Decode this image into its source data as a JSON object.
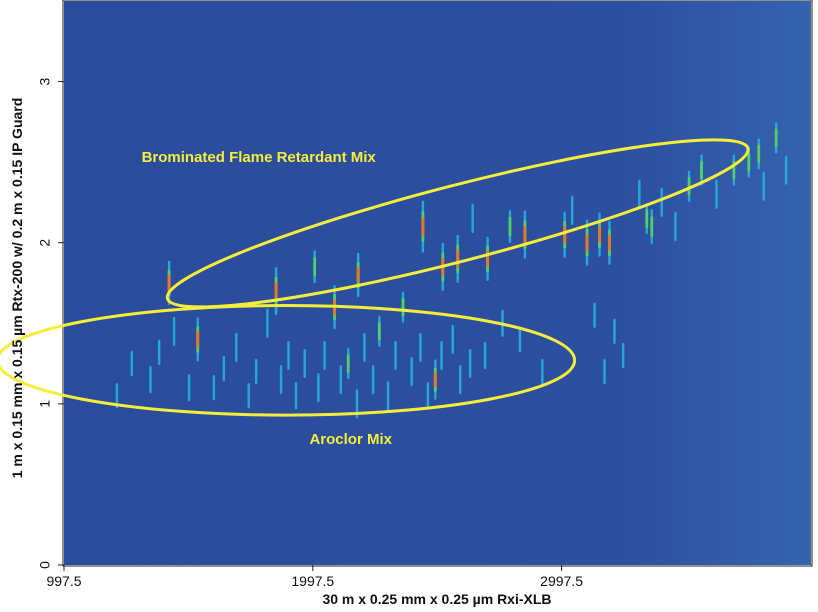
{
  "chart_data": {
    "type": "heatmap",
    "title": "",
    "xlabel": "30 m x 0.25 mm x 0.25 µm Rxi-XLB",
    "ylabel": "1 m x 0.15 mm x 0.15 µm Rtx-200 w/ 0.2 m x 0.15 IP Guard",
    "xlim": [
      997.5,
      4000
    ],
    "ylim": [
      0,
      3.5
    ],
    "x_ticks": [
      "997.5",
      "1997.5",
      "2997.5"
    ],
    "x_tick_values": [
      997.5,
      1997.5,
      2997.5
    ],
    "y_ticks": [
      "0",
      "1",
      "2",
      "3"
    ],
    "y_tick_values": [
      0,
      1,
      2,
      3
    ],
    "grid": false,
    "colors": {
      "background": "#2d4fa0",
      "low": "#22b8e0",
      "mid": "#4fd06a",
      "high": "#e07a2a",
      "annotation": "#f4ee3a"
    },
    "annotations": [
      {
        "label": "Brominated Flame Retardant Mix",
        "text_x": 1780,
        "text_y": 2.5,
        "center_x": 2580,
        "center_y": 2.12,
        "semi_major": 1205,
        "semi_minor": 0.235,
        "angle_deg": 14.5
      },
      {
        "label": "Aroclor Mix",
        "text_x": 2150,
        "text_y": 0.75,
        "center_x": 1890,
        "center_y": 1.27,
        "semi_major": 1160,
        "semi_minor": 0.34,
        "angle_deg": 0
      }
    ],
    "peaks": [
      {
        "x": 1210,
        "y": 1.05,
        "i": 0.3
      },
      {
        "x": 1270,
        "y": 1.25,
        "i": 0.3
      },
      {
        "x": 1345,
        "y": 1.15,
        "i": 0.35
      },
      {
        "x": 1380,
        "y": 1.32,
        "i": 0.3
      },
      {
        "x": 1420,
        "y": 1.75,
        "i": 0.8
      },
      {
        "x": 1440,
        "y": 1.45,
        "i": 0.4
      },
      {
        "x": 1500,
        "y": 1.1,
        "i": 0.35
      },
      {
        "x": 1535,
        "y": 1.4,
        "i": 0.8
      },
      {
        "x": 1600,
        "y": 1.1,
        "i": 0.3
      },
      {
        "x": 1640,
        "y": 1.22,
        "i": 0.3
      },
      {
        "x": 1690,
        "y": 1.35,
        "i": 0.4
      },
      {
        "x": 1740,
        "y": 1.05,
        "i": 0.3
      },
      {
        "x": 1770,
        "y": 1.2,
        "i": 0.3
      },
      {
        "x": 1815,
        "y": 1.5,
        "i": 0.4
      },
      {
        "x": 1850,
        "y": 1.7,
        "i": 0.9
      },
      {
        "x": 1870,
        "y": 1.15,
        "i": 0.4
      },
      {
        "x": 1900,
        "y": 1.3,
        "i": 0.4
      },
      {
        "x": 1930,
        "y": 1.05,
        "i": 0.35
      },
      {
        "x": 1965,
        "y": 1.25,
        "i": 0.4
      },
      {
        "x": 2005,
        "y": 1.85,
        "i": 0.5
      },
      {
        "x": 2020,
        "y": 1.1,
        "i": 0.4
      },
      {
        "x": 2045,
        "y": 1.3,
        "i": 0.4
      },
      {
        "x": 2085,
        "y": 1.6,
        "i": 0.8
      },
      {
        "x": 2110,
        "y": 1.15,
        "i": 0.4
      },
      {
        "x": 2140,
        "y": 1.25,
        "i": 0.45
      },
      {
        "x": 2175,
        "y": 1.0,
        "i": 0.4
      },
      {
        "x": 2180,
        "y": 1.8,
        "i": 0.8
      },
      {
        "x": 2205,
        "y": 1.35,
        "i": 0.4
      },
      {
        "x": 2240,
        "y": 1.15,
        "i": 0.4
      },
      {
        "x": 2265,
        "y": 1.45,
        "i": 0.45
      },
      {
        "x": 2300,
        "y": 1.05,
        "i": 0.4
      },
      {
        "x": 2330,
        "y": 1.3,
        "i": 0.4
      },
      {
        "x": 2360,
        "y": 1.6,
        "i": 0.45
      },
      {
        "x": 2395,
        "y": 1.2,
        "i": 0.4
      },
      {
        "x": 2430,
        "y": 1.35,
        "i": 0.4
      },
      {
        "x": 2440,
        "y": 2.1,
        "i": 1.0
      },
      {
        "x": 2460,
        "y": 1.05,
        "i": 0.35
      },
      {
        "x": 2490,
        "y": 1.15,
        "i": 0.7
      },
      {
        "x": 2515,
        "y": 1.3,
        "i": 0.4
      },
      {
        "x": 2520,
        "y": 1.85,
        "i": 0.9
      },
      {
        "x": 2560,
        "y": 1.4,
        "i": 0.4
      },
      {
        "x": 2580,
        "y": 1.9,
        "i": 0.9
      },
      {
        "x": 2590,
        "y": 1.15,
        "i": 0.4
      },
      {
        "x": 2630,
        "y": 1.25,
        "i": 0.4
      },
      {
        "x": 2640,
        "y": 2.15,
        "i": 0.4
      },
      {
        "x": 2690,
        "y": 1.3,
        "i": 0.35
      },
      {
        "x": 2700,
        "y": 1.9,
        "i": 0.8
      },
      {
        "x": 2760,
        "y": 1.5,
        "i": 0.35
      },
      {
        "x": 2790,
        "y": 2.1,
        "i": 0.5
      },
      {
        "x": 2830,
        "y": 1.4,
        "i": 0.3
      },
      {
        "x": 2850,
        "y": 2.05,
        "i": 0.9
      },
      {
        "x": 2920,
        "y": 1.2,
        "i": 0.3
      },
      {
        "x": 3010,
        "y": 2.05,
        "i": 0.85
      },
      {
        "x": 3040,
        "y": 2.2,
        "i": 0.4
      },
      {
        "x": 3100,
        "y": 2.0,
        "i": 0.85
      },
      {
        "x": 3130,
        "y": 1.55,
        "i": 0.3
      },
      {
        "x": 3150,
        "y": 2.05,
        "i": 0.8
      },
      {
        "x": 3170,
        "y": 1.2,
        "i": 0.3
      },
      {
        "x": 3190,
        "y": 2.0,
        "i": 0.8
      },
      {
        "x": 3210,
        "y": 1.45,
        "i": 0.3
      },
      {
        "x": 3245,
        "y": 1.3,
        "i": 0.3
      },
      {
        "x": 3310,
        "y": 2.3,
        "i": 0.4
      },
      {
        "x": 3340,
        "y": 2.15,
        "i": 0.45
      },
      {
        "x": 3360,
        "y": 2.1,
        "i": 0.55
      },
      {
        "x": 3400,
        "y": 2.25,
        "i": 0.4
      },
      {
        "x": 3455,
        "y": 2.1,
        "i": 0.4
      },
      {
        "x": 3510,
        "y": 2.35,
        "i": 0.45
      },
      {
        "x": 3560,
        "y": 2.45,
        "i": 0.45
      },
      {
        "x": 3620,
        "y": 2.3,
        "i": 0.4
      },
      {
        "x": 3690,
        "y": 2.45,
        "i": 0.45
      },
      {
        "x": 3750,
        "y": 2.5,
        "i": 0.45
      },
      {
        "x": 3790,
        "y": 2.55,
        "i": 0.45
      },
      {
        "x": 3810,
        "y": 2.35,
        "i": 0.4
      },
      {
        "x": 3860,
        "y": 2.65,
        "i": 0.45
      },
      {
        "x": 3900,
        "y": 2.45,
        "i": 0.4
      }
    ]
  }
}
